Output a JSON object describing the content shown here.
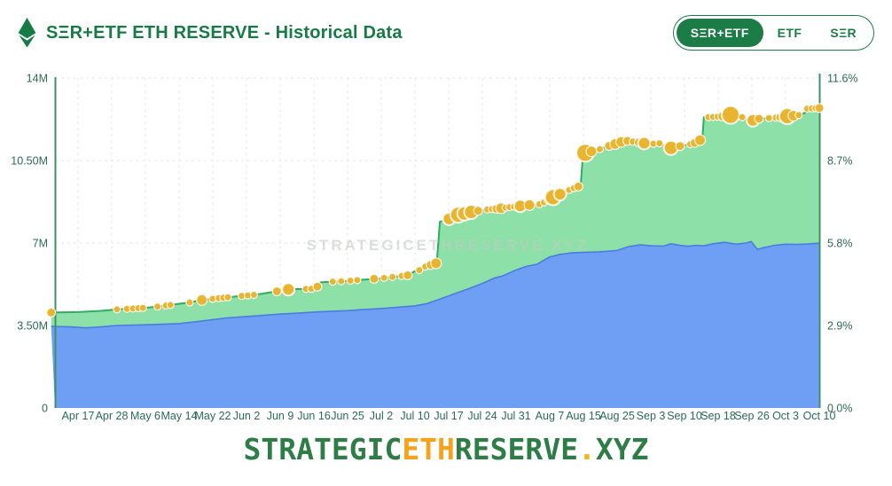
{
  "header": {
    "title": "SΞR+ETF ETH RESERVE - Historical Data",
    "logo": "ethereum-diamond",
    "logo_color": "#177b46",
    "toggles": [
      {
        "label": "SΞR+ETF",
        "selected": true
      },
      {
        "label": "ETF",
        "selected": false
      },
      {
        "label": "SΞR",
        "selected": false
      }
    ]
  },
  "footer": {
    "segments": [
      {
        "text": "STRATEGIC",
        "color": "#2e7d46"
      },
      {
        "text": "ETH",
        "color": "#f6a21d"
      },
      {
        "text": "RESERVE",
        "color": "#2e7d46"
      },
      {
        "text": ".",
        "color": "#f2b51f"
      },
      {
        "text": "XYZ",
        "color": "#2e7d46"
      }
    ]
  },
  "chart_data": {
    "type": "area",
    "stacked": true,
    "title": "SΞR+ETF ETH RESERVE - Historical Data",
    "watermark": "STRATEGICETHRESERVE.XYZ",
    "units": "left axis: ETH (millions), right axis: % of ETH supply",
    "x_labels": [
      "Apr 17",
      "Apr 28",
      "May 6",
      "May 14",
      "May 22",
      "Jun 2",
      "Jun 9",
      "Jun 16",
      "Jun 25",
      "Jul 2",
      "Jul 10",
      "Jul 17",
      "Jul 24",
      "Jul 31",
      "Aug 7",
      "Aug 15",
      "Aug 25",
      "Sep 3",
      "Sep 10",
      "Sep 18",
      "Sep 26",
      "Oct 3",
      "Oct 10"
    ],
    "y_left": {
      "tick_labels": [
        "0",
        "3.50M",
        "7M",
        "10.50M",
        "14M"
      ],
      "tick_values_m": [
        0,
        3.5,
        7,
        10.5,
        14
      ],
      "max_m": 14
    },
    "y_right": {
      "tick_labels": [
        "0.0%",
        "2.9%",
        "5.8%",
        "8.7%",
        "11.6%"
      ],
      "max_pct": 11.6
    },
    "grid": {
      "show": true,
      "color": "#e5e7e5",
      "dash": "3 4"
    },
    "axis_color": "#3f9065",
    "tick_color": "#2b6b50",
    "series": [
      {
        "name": "lower-blue-area",
        "fill": "#6f9ff4",
        "line": "#4a7de0",
        "points_pct_m": [
          [
            -0.5,
            3.46
          ],
          [
            2,
            3.44
          ],
          [
            4,
            3.4
          ],
          [
            6,
            3.44
          ],
          [
            8.1,
            3.5
          ],
          [
            12,
            3.53
          ],
          [
            16.2,
            3.58
          ],
          [
            19,
            3.68
          ],
          [
            22.4,
            3.82
          ],
          [
            25,
            3.88
          ],
          [
            29.3,
            3.98
          ],
          [
            32,
            4.03
          ],
          [
            34.5,
            4.08
          ],
          [
            38.2,
            4.13
          ],
          [
            40,
            4.17
          ],
          [
            42.6,
            4.22
          ],
          [
            45,
            4.28
          ],
          [
            47,
            4.33
          ],
          [
            48.5,
            4.42
          ],
          [
            50.3,
            4.62
          ],
          [
            52,
            4.82
          ],
          [
            54,
            5.05
          ],
          [
            55.8,
            5.28
          ],
          [
            57.5,
            5.52
          ],
          [
            58.5,
            5.6
          ],
          [
            60.2,
            5.85
          ],
          [
            61.5,
            6.0
          ],
          [
            63,
            6.1
          ],
          [
            64.6,
            6.4
          ],
          [
            66,
            6.52
          ],
          [
            67.5,
            6.58
          ],
          [
            69,
            6.6
          ],
          [
            71,
            6.62
          ],
          [
            73.4,
            6.68
          ],
          [
            75,
            6.85
          ],
          [
            76.5,
            6.92
          ],
          [
            78,
            6.88
          ],
          [
            79.5,
            6.87
          ],
          [
            80.5,
            6.97
          ],
          [
            81.7,
            6.9
          ],
          [
            82.7,
            6.86
          ],
          [
            83.7,
            6.9
          ],
          [
            84.8,
            6.88
          ],
          [
            86,
            6.97
          ],
          [
            87.5,
            7.03
          ],
          [
            89,
            6.95
          ],
          [
            90.3,
            7.0
          ],
          [
            91,
            7.06
          ],
          [
            91.8,
            6.73
          ],
          [
            92.6,
            6.8
          ],
          [
            94,
            6.9
          ],
          [
            95.5,
            6.95
          ],
          [
            97,
            6.94
          ],
          [
            98.5,
            6.96
          ],
          [
            100,
            7.0
          ]
        ]
      },
      {
        "name": "total-green-area",
        "fill": "#8ce0a8",
        "line": "#2fae63",
        "points_pct_m": [
          [
            -0.5,
            4.05
          ],
          [
            3,
            4.07
          ],
          [
            6,
            4.12
          ],
          [
            8.1,
            4.18
          ],
          [
            10.2,
            4.22
          ],
          [
            11.8,
            4.25
          ],
          [
            13.4,
            4.3
          ],
          [
            15.1,
            4.37
          ],
          [
            17.6,
            4.48
          ],
          [
            19.2,
            4.58
          ],
          [
            20.6,
            4.63
          ],
          [
            22.6,
            4.7
          ],
          [
            24.7,
            4.76
          ],
          [
            26.1,
            4.8
          ],
          [
            29,
            4.95
          ],
          [
            30.5,
            5.03
          ],
          [
            32.8,
            5.05
          ],
          [
            34.1,
            5.06
          ],
          [
            34.7,
            5.33
          ],
          [
            36.3,
            5.36
          ],
          [
            38.6,
            5.4
          ],
          [
            40.5,
            5.45
          ],
          [
            42.6,
            5.5
          ],
          [
            44.1,
            5.56
          ],
          [
            45.3,
            5.6
          ],
          [
            46.1,
            5.63
          ],
          [
            47,
            5.8
          ],
          [
            47.6,
            5.85
          ],
          [
            48.4,
            6.0
          ],
          [
            49.2,
            6.08
          ],
          [
            49.9,
            6.15
          ],
          [
            50.3,
            7.9
          ],
          [
            51.5,
            8.02
          ],
          [
            52.7,
            8.2
          ],
          [
            53.9,
            8.28
          ],
          [
            54.6,
            8.33
          ],
          [
            55.3,
            8.37
          ],
          [
            56.5,
            8.42
          ],
          [
            57.7,
            8.45
          ],
          [
            58.9,
            8.5
          ],
          [
            60.2,
            8.55
          ],
          [
            61.5,
            8.6
          ],
          [
            63.5,
            8.65
          ],
          [
            64.8,
            8.9
          ],
          [
            66.2,
            9.1
          ],
          [
            67.2,
            9.25
          ],
          [
            68.2,
            9.38
          ],
          [
            68.7,
            9.42
          ],
          [
            69.0,
            10.8
          ],
          [
            70,
            10.88
          ],
          [
            71.2,
            10.98
          ],
          [
            72.4,
            11.12
          ],
          [
            73.4,
            11.22
          ],
          [
            74.5,
            11.35
          ],
          [
            76,
            11.28
          ],
          [
            77.8,
            11.2
          ],
          [
            79,
            11.23
          ],
          [
            80.3,
            11.02
          ],
          [
            81.5,
            11.1
          ],
          [
            83.1,
            11.2
          ],
          [
            83.8,
            11.27
          ],
          [
            84.6,
            11.42
          ],
          [
            84.8,
            12.33
          ],
          [
            86.1,
            12.35
          ],
          [
            87.2,
            12.37
          ],
          [
            88.4,
            12.44
          ],
          [
            89.5,
            12.38
          ],
          [
            90.4,
            12.26
          ],
          [
            91.2,
            12.2
          ],
          [
            92.1,
            12.28
          ],
          [
            93.3,
            12.3
          ],
          [
            94.2,
            12.32
          ],
          [
            94.8,
            12.34
          ],
          [
            95.7,
            12.38
          ],
          [
            96.5,
            12.4
          ],
          [
            97.4,
            12.44
          ],
          [
            98.0,
            12.52
          ],
          [
            98.3,
            12.7
          ],
          [
            100,
            12.73
          ]
        ]
      }
    ],
    "event_dots": {
      "fill": "#e9b42f",
      "stroke": "#ffffff",
      "points_pct_r": [
        [
          -0.5,
          5
        ],
        [
          8.1,
          4
        ],
        [
          9.4,
          4
        ],
        [
          10.2,
          4
        ],
        [
          10.9,
          4
        ],
        [
          11.5,
          4
        ],
        [
          13.4,
          4
        ],
        [
          14.5,
          4
        ],
        [
          15.1,
          4
        ],
        [
          17.6,
          4
        ],
        [
          19.2,
          6
        ],
        [
          20.6,
          4
        ],
        [
          21.4,
          4
        ],
        [
          22.0,
          4
        ],
        [
          22.6,
          4
        ],
        [
          24.4,
          4
        ],
        [
          25.2,
          4
        ],
        [
          26.0,
          4
        ],
        [
          29.0,
          5
        ],
        [
          30.5,
          7
        ],
        [
          32.8,
          4
        ],
        [
          33.5,
          4
        ],
        [
          34.3,
          5
        ],
        [
          36.3,
          4
        ],
        [
          37.4,
          4
        ],
        [
          38.6,
          4
        ],
        [
          39.5,
          4
        ],
        [
          41.7,
          5
        ],
        [
          43.0,
          4
        ],
        [
          44.1,
          4
        ],
        [
          45.3,
          4
        ],
        [
          46.1,
          5
        ],
        [
          47.6,
          4
        ],
        [
          48.4,
          4
        ],
        [
          49.1,
          5
        ],
        [
          49.8,
          6
        ],
        [
          51.5,
          7
        ],
        [
          52.7,
          9
        ],
        [
          53.5,
          8
        ],
        [
          54.4,
          8
        ],
        [
          55.3,
          5
        ],
        [
          56.5,
          4
        ],
        [
          57.1,
          4
        ],
        [
          57.7,
          5
        ],
        [
          58.3,
          6
        ],
        [
          58.9,
          4
        ],
        [
          59.4,
          4
        ],
        [
          60.0,
          4
        ],
        [
          60.8,
          7
        ],
        [
          62.0,
          6
        ],
        [
          63.3,
          4
        ],
        [
          63.9,
          4
        ],
        [
          64.5,
          5
        ],
        [
          65.1,
          9
        ],
        [
          66.0,
          7
        ],
        [
          67.2,
          4
        ],
        [
          67.8,
          4
        ],
        [
          68.4,
          5
        ],
        [
          69.3,
          10
        ],
        [
          70.1,
          6
        ],
        [
          71.2,
          4
        ],
        [
          72.4,
          5
        ],
        [
          73.2,
          6
        ],
        [
          74.0,
          6
        ],
        [
          74.8,
          5
        ],
        [
          75.5,
          4
        ],
        [
          76.3,
          5
        ],
        [
          77.0,
          7
        ],
        [
          78.2,
          4
        ],
        [
          79.0,
          4
        ],
        [
          80.5,
          8
        ],
        [
          81.7,
          5
        ],
        [
          83.0,
          4
        ],
        [
          83.6,
          5
        ],
        [
          84.3,
          6
        ],
        [
          85.4,
          4
        ],
        [
          86.0,
          4
        ],
        [
          86.6,
          4
        ],
        [
          87.2,
          5
        ],
        [
          88.3,
          10
        ],
        [
          89.8,
          4
        ],
        [
          91.2,
          7
        ],
        [
          92.0,
          5
        ],
        [
          93.3,
          4
        ],
        [
          94.2,
          4
        ],
        [
          94.8,
          5
        ],
        [
          95.7,
          9
        ],
        [
          96.5,
          6
        ],
        [
          97.2,
          4
        ],
        [
          98.3,
          4
        ],
        [
          98.9,
          4
        ],
        [
          99.4,
          4
        ],
        [
          99.9,
          5
        ]
      ]
    }
  }
}
